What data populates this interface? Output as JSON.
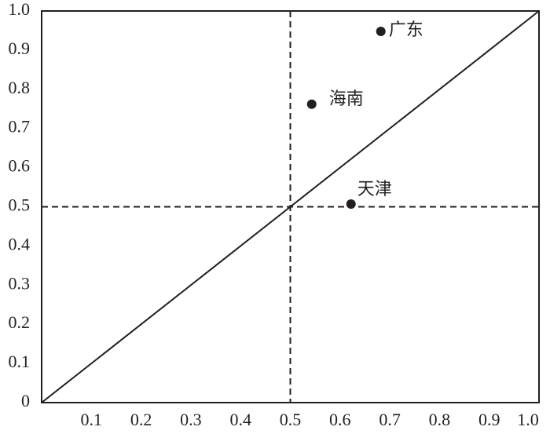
{
  "chart_data": {
    "type": "scatter",
    "x": [
      0.682,
      0.543,
      0.622
    ],
    "values": [
      0.948,
      0.762,
      0.507
    ],
    "labels": [
      "广东",
      "海南",
      "天津"
    ],
    "color": "#231f20",
    "xlim": [
      0,
      1
    ],
    "ylim": [
      0,
      1
    ],
    "xticks": [
      0.1,
      0.2,
      0.3,
      0.4,
      0.5,
      0.6,
      0.7,
      0.8,
      0.9,
      {
        "value": 1,
        "label": "1.0"
      }
    ],
    "yticks": [
      0,
      0.1,
      0.2,
      0.3,
      0.4,
      0.5,
      0.6,
      0.7,
      0.8,
      0.9,
      {
        "value": 1,
        "label": "1.0"
      }
    ],
    "vlines": [
      0.5
    ],
    "hlines": [
      0.5
    ],
    "diagonal": true,
    "grid": false
  }
}
